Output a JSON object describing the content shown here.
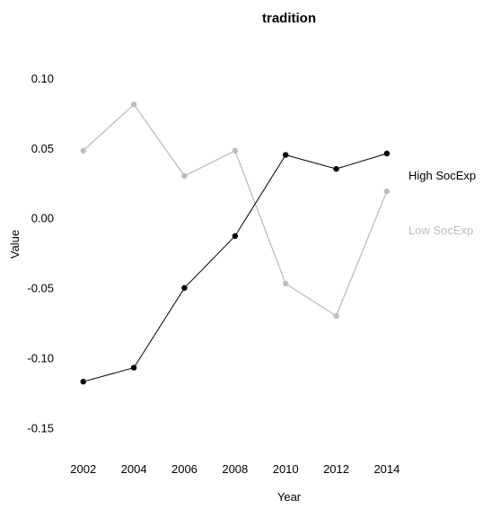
{
  "chart_data": {
    "type": "line",
    "title": "tradition",
    "xlabel": "Year",
    "ylabel": "Value",
    "x": [
      2002,
      2004,
      2006,
      2008,
      2010,
      2012,
      2014
    ],
    "xlim": [
      2001.3,
      2014.5
    ],
    "ylim": [
      -0.165,
      0.105
    ],
    "yticks": [
      "0.10",
      "0.05",
      "0.00",
      "-0.05",
      "-0.10",
      "-0.15"
    ],
    "grid": false,
    "legend": "direct labels at right end of lines",
    "series": [
      {
        "name": "High SocExp",
        "color": "#000000",
        "values": [
          -0.117,
          -0.107,
          -0.05,
          -0.013,
          0.045,
          0.035,
          0.046
        ]
      },
      {
        "name": "Low SocExp",
        "color": "#bdbdbd",
        "values": [
          0.048,
          0.081,
          0.03,
          0.048,
          -0.047,
          -0.07,
          0.019
        ]
      }
    ]
  }
}
